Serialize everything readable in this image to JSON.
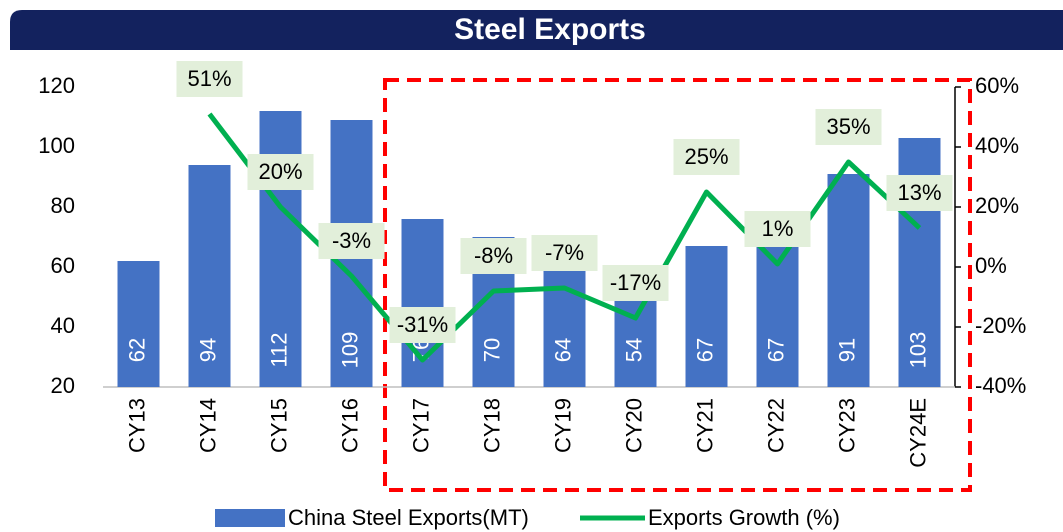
{
  "chart_data": {
    "type": "bar_line",
    "title": "Steel Exports",
    "categories": [
      "CY13",
      "CY14",
      "CY15",
      "CY16",
      "CY17",
      "CY18",
      "CY19",
      "CY20",
      "CY21",
      "CY22",
      "CY23",
      "CY24E"
    ],
    "series": [
      {
        "name": "China Steel Exports(MT)",
        "color": "#4472c4",
        "type": "bar",
        "values": [
          62,
          94,
          112,
          109,
          76,
          70,
          64,
          54,
          67,
          67,
          91,
          103
        ]
      },
      {
        "name": "Exports Growth (%)",
        "color": "#00b050",
        "type": "line",
        "axis": "y2",
        "values": [
          null,
          51,
          20,
          -3,
          -31,
          -8,
          -7,
          -17,
          25,
          1,
          35,
          13
        ],
        "value_labels": [
          null,
          "51%",
          "20%",
          "-3%",
          "-31%",
          "-8%",
          "-7%",
          "-17%",
          "25%",
          "1%",
          "35%",
          "13%"
        ]
      }
    ],
    "ylim": [
      20,
      120
    ],
    "yticks": [
      20,
      40,
      60,
      80,
      100,
      120
    ],
    "y2lim": [
      -40,
      60
    ],
    "y2ticks": [
      {
        "value": -40,
        "label": "-40%"
      },
      {
        "value": -20,
        "label": "-20%"
      },
      {
        "value": 0,
        "label": "0%"
      },
      {
        "value": 20,
        "label": "20%"
      },
      {
        "value": 40,
        "label": "40%"
      },
      {
        "value": 60,
        "label": "60%"
      }
    ]
  }
}
